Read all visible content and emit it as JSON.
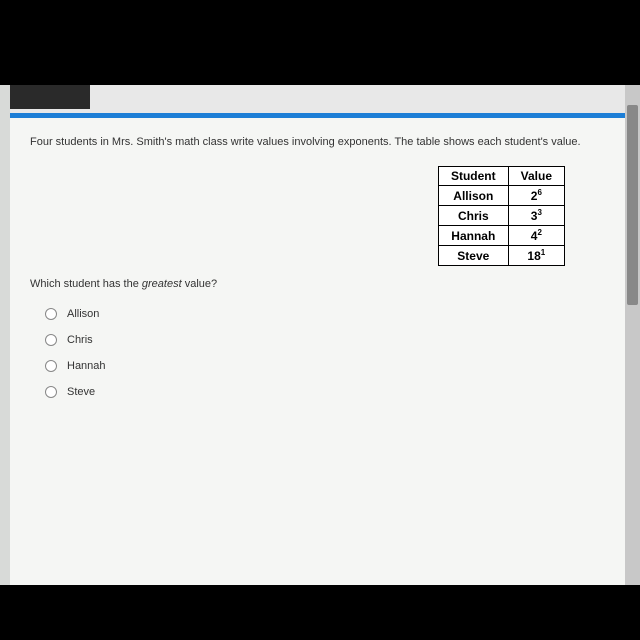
{
  "intro_text": "Four students in Mrs. Smith's math class write values involving exponents. The table shows each student's value.",
  "table": {
    "headers": [
      "Student",
      "Value"
    ],
    "rows": [
      {
        "student": "Allison",
        "base": "2",
        "exp": "6"
      },
      {
        "student": "Chris",
        "base": "3",
        "exp": "3"
      },
      {
        "student": "Hannah",
        "base": "4",
        "exp": "2"
      },
      {
        "student": "Steve",
        "base": "18",
        "exp": "1"
      }
    ]
  },
  "question_prefix": "Which student has the ",
  "question_emphasis": "greatest",
  "question_suffix": " value?",
  "options": [
    "Allison",
    "Chris",
    "Hannah",
    "Steve"
  ],
  "colors": {
    "page_bg": "#000000",
    "screen_bg": "#d8dad8",
    "content_bg": "#f5f6f4",
    "blue_line": "#1c7ed6",
    "text": "#333333",
    "table_border": "#000000"
  }
}
